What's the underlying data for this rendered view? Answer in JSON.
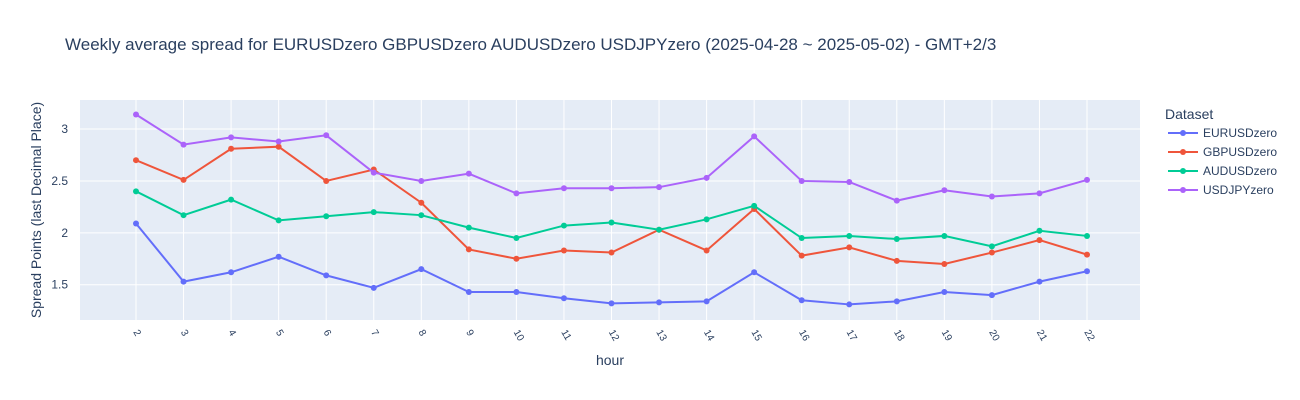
{
  "chart_data": {
    "type": "line",
    "title": "Weekly average spread for  EURUSDzero GBPUSDzero AUDUSDzero USDJPYzero (2025-04-28 ~ 2025-05-02) - GMT+2/3",
    "xlabel": "hour",
    "ylabel": "Spread Points (last Decimal Place)",
    "x": [
      2,
      3,
      4,
      5,
      6,
      7,
      8,
      9,
      10,
      11,
      12,
      13,
      14,
      15,
      16,
      17,
      18,
      19,
      20,
      21,
      22
    ],
    "ylim": [
      1.16,
      3.28
    ],
    "yticks": [
      1.5,
      2,
      2.5,
      3
    ],
    "ytick_labels": [
      "1.5",
      "2",
      "2.5",
      "3"
    ],
    "grid": true,
    "legend_title": "Dataset",
    "legend_position": "right",
    "series": [
      {
        "name": "EURUSDzero",
        "color": "#636efa",
        "values": [
          2.09,
          1.53,
          1.62,
          1.77,
          1.59,
          1.47,
          1.65,
          1.43,
          1.43,
          1.37,
          1.32,
          1.33,
          1.34,
          1.62,
          1.35,
          1.31,
          1.34,
          1.43,
          1.4,
          1.53,
          1.63
        ]
      },
      {
        "name": "GBPUSDzero",
        "color": "#ef553b",
        "values": [
          2.7,
          2.51,
          2.81,
          2.83,
          2.5,
          2.61,
          2.29,
          1.84,
          1.75,
          1.83,
          1.81,
          2.03,
          1.83,
          2.23,
          1.78,
          1.86,
          1.73,
          1.7,
          1.81,
          1.93,
          1.79
        ]
      },
      {
        "name": "AUDUSDzero",
        "color": "#00cc96",
        "values": [
          2.4,
          2.17,
          2.32,
          2.12,
          2.16,
          2.2,
          2.17,
          2.05,
          1.95,
          2.07,
          2.1,
          2.03,
          2.13,
          2.26,
          1.95,
          1.97,
          1.94,
          1.97,
          1.87,
          2.02,
          1.97
        ]
      },
      {
        "name": "USDJPYzero",
        "color": "#ab63fa",
        "values": [
          3.14,
          2.85,
          2.92,
          2.88,
          2.94,
          2.58,
          2.5,
          2.57,
          2.38,
          2.43,
          2.43,
          2.44,
          2.53,
          2.93,
          2.5,
          2.49,
          2.31,
          2.41,
          2.35,
          2.38,
          2.51
        ]
      }
    ]
  }
}
